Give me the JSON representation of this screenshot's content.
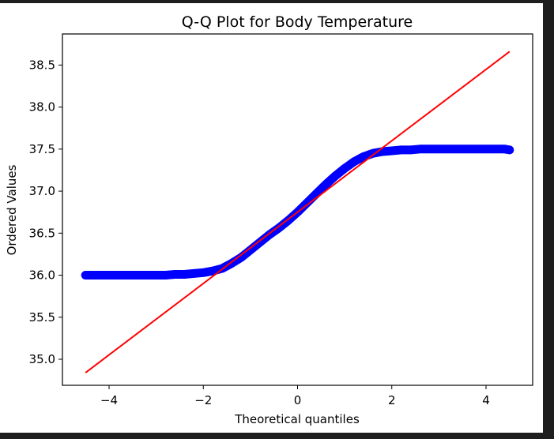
{
  "chart_data": {
    "type": "scatter",
    "title": "Q-Q Plot for Body Temperature",
    "xlabel": "Theoretical quantiles",
    "ylabel": "Ordered Values",
    "xlim": [
      -4.99,
      4.99
    ],
    "ylim": [
      34.69,
      38.87
    ],
    "xticks": [
      -4,
      -2,
      0,
      2,
      4
    ],
    "xtick_labels": [
      "−4",
      "−2",
      "0",
      "2",
      "4"
    ],
    "yticks": [
      35.0,
      35.5,
      36.0,
      36.5,
      37.0,
      37.5,
      38.0,
      38.5
    ],
    "ytick_labels": [
      "35.0",
      "35.5",
      "36.0",
      "36.5",
      "37.0",
      "37.5",
      "38.0",
      "38.5"
    ],
    "grid": false,
    "legend": null,
    "series": [
      {
        "kind": "points",
        "color": "#0000ff",
        "x": [
          -4.5,
          -4.4,
          -4.3,
          -4.2,
          -4.0,
          -3.8,
          -3.6,
          -3.4,
          -3.2,
          -3.0,
          -2.8,
          -2.6,
          -2.4,
          -2.2,
          -2.0,
          -1.8,
          -1.6,
          -1.4,
          -1.2,
          -1.0,
          -0.8,
          -0.6,
          -0.4,
          -0.2,
          0.0,
          0.2,
          0.4,
          0.6,
          0.8,
          1.0,
          1.2,
          1.4,
          1.6,
          1.8,
          2.0,
          2.2,
          2.4,
          2.6,
          2.8,
          3.0,
          3.2,
          3.4,
          3.6,
          3.8,
          4.0,
          4.2,
          4.3,
          4.4,
          4.5
        ],
        "y": [
          36.0,
          36.0,
          36.0,
          36.0,
          36.0,
          36.0,
          36.0,
          36.0,
          36.0,
          36.0,
          36.0,
          36.01,
          36.01,
          36.02,
          36.03,
          36.05,
          36.08,
          36.14,
          36.21,
          36.3,
          36.39,
          36.48,
          36.56,
          36.65,
          36.75,
          36.86,
          36.97,
          37.08,
          37.18,
          37.27,
          37.35,
          37.41,
          37.45,
          37.47,
          37.48,
          37.49,
          37.49,
          37.5,
          37.5,
          37.5,
          37.5,
          37.5,
          37.5,
          37.5,
          37.5,
          37.5,
          37.5,
          37.5,
          37.49
        ]
      },
      {
        "kind": "fit-line",
        "color": "#ff0000",
        "x": [
          -4.5,
          4.5
        ],
        "y": [
          34.84,
          38.66
        ]
      }
    ]
  }
}
